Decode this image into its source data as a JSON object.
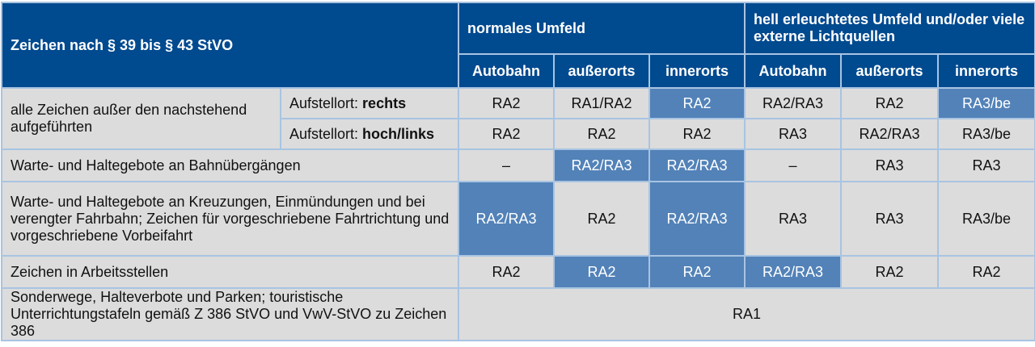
{
  "header": {
    "title": "Zeichen nach § 39 bis § 43 StVO",
    "group1": "normales Umfeld",
    "group2": "hell erleuchtetes Umfeld und/oder viele externe Lichtquellen",
    "cols": [
      "Autobahn",
      "außerorts",
      "innerorts",
      "Autobahn",
      "außerorts",
      "innerorts"
    ]
  },
  "colors": {
    "header": "#004a8f",
    "cell": "#dcdcdc",
    "highlight": "#5282b8",
    "border": "#a8c4e2"
  },
  "rows": [
    {
      "label": "alle Zeichen außer den nachstehend aufgeführten",
      "sub_prefix": "Aufstellort: ",
      "sub_bold": "rechts",
      "cells": [
        {
          "t": "RA2"
        },
        {
          "t": "RA1/RA2"
        },
        {
          "t": "RA2",
          "hl": true
        },
        {
          "t": "RA2/RA3"
        },
        {
          "t": "RA2"
        },
        {
          "t": "RA3/be",
          "hl": true
        }
      ]
    },
    {
      "sub_prefix": "Aufstellort: ",
      "sub_bold": "hoch/links",
      "cells": [
        {
          "t": "RA2"
        },
        {
          "t": "RA2"
        },
        {
          "t": "RA2"
        },
        {
          "t": "RA3"
        },
        {
          "t": "RA2/RA3"
        },
        {
          "t": "RA3/be"
        }
      ]
    },
    {
      "label": "Warte- und Haltegebote an Bahnübergängen",
      "cells": [
        {
          "t": "–"
        },
        {
          "t": "RA2/RA3",
          "hl": true
        },
        {
          "t": "RA2/RA3",
          "hl": true
        },
        {
          "t": "–"
        },
        {
          "t": "RA3"
        },
        {
          "t": "RA3"
        }
      ]
    },
    {
      "label": "Warte- und Haltegebote an Kreuzungen, Einmündungen und bei verengter Fahrbahn; Zeichen für vorgeschriebene Fahrtrichtung und vorgeschriebene Vorbeifahrt",
      "cells": [
        {
          "t": "RA2/RA3",
          "hl": true
        },
        {
          "t": "RA2"
        },
        {
          "t": "RA2/RA3",
          "hl": true
        },
        {
          "t": "RA3"
        },
        {
          "t": "RA3"
        },
        {
          "t": "RA3/be"
        }
      ]
    },
    {
      "label": "Zeichen in Arbeitsstellen",
      "cells": [
        {
          "t": "RA2"
        },
        {
          "t": "RA2",
          "hl": true
        },
        {
          "t": "RA2",
          "hl": true
        },
        {
          "t": "RA2/RA3",
          "hl": true
        },
        {
          "t": "RA2"
        },
        {
          "t": "RA2"
        }
      ]
    },
    {
      "label": "Sonderwege, Halteverbote und Parken; touristische Unterrichtungstafeln gemäß Z 386 StVO und VwV-StVO zu Zeichen 386",
      "cells": [
        {
          "t": "RA1"
        }
      ]
    }
  ]
}
